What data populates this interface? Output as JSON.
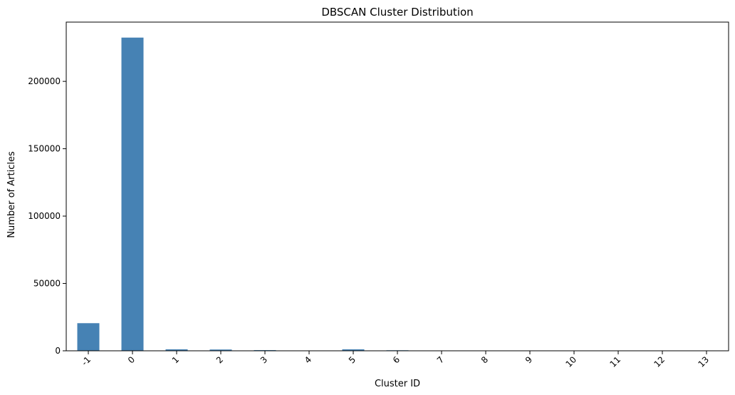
{
  "chart_data": {
    "type": "bar",
    "title": "DBSCAN Cluster Distribution",
    "xlabel": "Cluster ID",
    "ylabel": "Number of Articles",
    "categories": [
      "-1",
      "0",
      "1",
      "2",
      "3",
      "4",
      "5",
      "6",
      "7",
      "8",
      "9",
      "10",
      "11",
      "12",
      "13"
    ],
    "values": [
      20500,
      232500,
      1100,
      950,
      500,
      150,
      1100,
      400,
      120,
      100,
      80,
      80,
      60,
      60,
      50
    ],
    "ylim": [
      0,
      244000
    ],
    "yticks": [
      0,
      50000,
      100000,
      150000,
      200000
    ],
    "ytick_labels": [
      "0",
      "50000",
      "100000",
      "150000",
      "200000"
    ],
    "bar_color": "#4682b4",
    "grid": false,
    "legend": "none"
  }
}
